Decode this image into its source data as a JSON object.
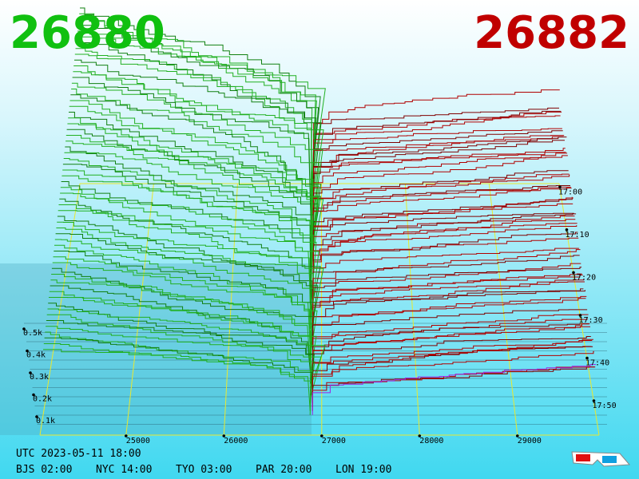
{
  "header": {
    "bid": "26880",
    "ask": "26882"
  },
  "price_axis": [
    "25000",
    "26000",
    "27000",
    "28000",
    "29000"
  ],
  "depth_axis": [
    "0.5k",
    "0.4k",
    "0.3k",
    "0.2k",
    "0.1k"
  ],
  "time_axis": [
    "17:00",
    "17:10",
    "17:20",
    "17:30",
    "17:40",
    "17:50"
  ],
  "footer": {
    "utc": "UTC 2023-05-11 18:00",
    "zones": [
      "BJS 02:00",
      "NYC 14:00",
      "TYO 03:00",
      "PAR 20:00",
      "LON 19:00"
    ]
  }
}
